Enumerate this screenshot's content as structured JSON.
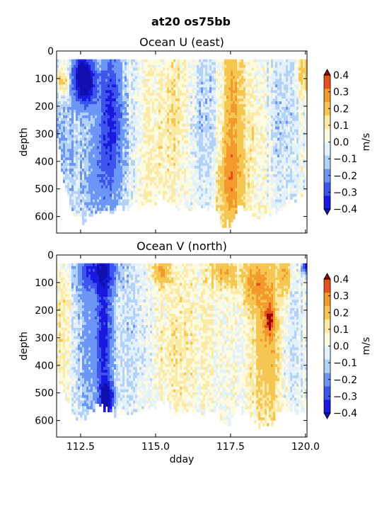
{
  "suptitle": "at20 os75bb",
  "colors": {
    "levels": [
      "#1a1adf",
      "#3d55ec",
      "#6b96f5",
      "#b4d2f7",
      "#e2f1fb",
      "#fdfbdf",
      "#fbeaa5",
      "#f6c653",
      "#f39a2d",
      "#e6501c"
    ],
    "under": "#1010b0",
    "over": "#a00000",
    "missing": "#ffffff"
  },
  "chart_data": [
    {
      "type": "heatmap",
      "title": "Ocean U (east)",
      "xlabel": "",
      "ylabel": "depth",
      "xlim": [
        111.7,
        120.05
      ],
      "ylim": [
        660,
        0
      ],
      "xticks": [
        112.5,
        115.0,
        117.5,
        120.0
      ],
      "xticklabels": [],
      "yticks": [
        0,
        100,
        200,
        300,
        400,
        500,
        600
      ],
      "yticklabels": [
        "0",
        "100",
        "200",
        "300",
        "400",
        "500",
        "600"
      ],
      "colorbar": {
        "label": "m/s",
        "ticks": [
          0.4,
          0.3,
          0.2,
          0.1,
          0.0,
          -0.1,
          -0.2,
          -0.3,
          -0.4
        ],
        "ticklabels": [
          "0.4",
          "0.3",
          "0.2",
          "0.1",
          "0.0",
          "−0.1",
          "−0.2",
          "−0.3",
          "−0.4"
        ],
        "levels": [
          -0.4,
          -0.3,
          -0.2,
          -0.1,
          -0.05,
          0.0,
          0.05,
          0.1,
          0.2,
          0.3,
          0.4
        ]
      },
      "data_top_depth": 30,
      "features": [
        {
          "x": 112.55,
          "depth": 90,
          "sx": 0.2,
          "sd": 60,
          "value": -0.45
        },
        {
          "x": 112.8,
          "depth": 120,
          "sx": 0.25,
          "sd": 60,
          "value": -0.25
        },
        {
          "x": 113.5,
          "depth": 200,
          "sx": 0.25,
          "sd": 170,
          "value": -0.28
        },
        {
          "x": 113.2,
          "depth": 450,
          "sx": 0.4,
          "sd": 150,
          "value": -0.15
        },
        {
          "x": 111.9,
          "depth": 110,
          "sx": 0.15,
          "sd": 40,
          "value": 0.18
        },
        {
          "x": 112.0,
          "depth": 300,
          "sx": 0.4,
          "sd": 250,
          "value": -0.1
        },
        {
          "x": 114.0,
          "depth": 300,
          "sx": 0.5,
          "sd": 200,
          "value": -0.06
        },
        {
          "x": 114.9,
          "depth": 350,
          "sx": 0.6,
          "sd": 250,
          "value": 0.06
        },
        {
          "x": 115.8,
          "depth": 200,
          "sx": 0.3,
          "sd": 200,
          "value": 0.08
        },
        {
          "x": 116.5,
          "depth": 250,
          "sx": 0.5,
          "sd": 200,
          "value": -0.07
        },
        {
          "x": 117.55,
          "depth": 200,
          "sx": 0.22,
          "sd": 200,
          "value": 0.22
        },
        {
          "x": 117.5,
          "depth": 500,
          "sx": 0.3,
          "sd": 120,
          "value": 0.2
        },
        {
          "x": 118.3,
          "depth": 300,
          "sx": 0.4,
          "sd": 200,
          "value": 0.05
        },
        {
          "x": 119.2,
          "depth": 250,
          "sx": 0.4,
          "sd": 200,
          "value": -0.07
        },
        {
          "x": 119.95,
          "depth": 80,
          "sx": 0.15,
          "sd": 60,
          "value": 0.15
        }
      ],
      "bottom_profile": {
        "x": [
          111.7,
          112.0,
          112.3,
          112.6,
          113.0,
          113.3,
          113.6,
          114.0,
          114.3,
          114.6,
          115.0,
          115.3,
          115.6,
          116.0,
          116.3,
          116.6,
          117.0,
          117.2,
          117.4,
          117.6,
          117.8,
          118.1,
          118.5,
          118.9,
          119.3,
          119.6,
          120.0
        ],
        "depth": [
          280,
          520,
          600,
          610,
          580,
          560,
          570,
          560,
          560,
          570,
          540,
          520,
          560,
          560,
          570,
          580,
          560,
          620,
          630,
          620,
          560,
          580,
          600,
          580,
          560,
          540,
          500
        ]
      }
    },
    {
      "type": "heatmap",
      "title": "Ocean V (north)",
      "xlabel": "dday",
      "ylabel": "depth",
      "xlim": [
        111.7,
        120.05
      ],
      "ylim": [
        660,
        0
      ],
      "xticks": [
        112.5,
        115.0,
        117.5,
        120.0
      ],
      "xticklabels": [
        "112.5",
        "115.0",
        "117.5",
        "120.0"
      ],
      "yticks": [
        0,
        100,
        200,
        300,
        400,
        500,
        600
      ],
      "yticklabels": [
        "0",
        "100",
        "200",
        "300",
        "400",
        "500",
        "600"
      ],
      "colorbar": {
        "label": "m/s",
        "ticks": [
          0.4,
          0.3,
          0.2,
          0.1,
          0.0,
          -0.1,
          -0.2,
          -0.3,
          -0.4
        ],
        "ticklabels": [
          "0.4",
          "0.3",
          "0.2",
          "0.1",
          "0.0",
          "−0.1",
          "−0.2",
          "−0.3",
          "−0.4"
        ],
        "levels": [
          -0.4,
          -0.3,
          -0.2,
          -0.1,
          -0.05,
          0.0,
          0.05,
          0.1,
          0.2,
          0.3,
          0.4
        ]
      },
      "data_top_depth": 30,
      "features": [
        {
          "x": 113.3,
          "depth": 300,
          "sx": 0.2,
          "sd": 250,
          "value": -0.28
        },
        {
          "x": 113.1,
          "depth": 60,
          "sx": 0.5,
          "sd": 50,
          "value": -0.25
        },
        {
          "x": 113.4,
          "depth": 520,
          "sx": 0.15,
          "sd": 40,
          "value": -0.35
        },
        {
          "x": 112.8,
          "depth": 300,
          "sx": 0.35,
          "sd": 250,
          "value": -0.12
        },
        {
          "x": 111.9,
          "depth": 250,
          "sx": 0.2,
          "sd": 200,
          "value": 0.07
        },
        {
          "x": 114.2,
          "depth": 300,
          "sx": 0.4,
          "sd": 250,
          "value": -0.06
        },
        {
          "x": 115.2,
          "depth": 60,
          "sx": 0.2,
          "sd": 40,
          "value": 0.2
        },
        {
          "x": 115.4,
          "depth": 350,
          "sx": 0.4,
          "sd": 200,
          "value": 0.06
        },
        {
          "x": 116.5,
          "depth": 250,
          "sx": 0.6,
          "sd": 250,
          "value": 0.04
        },
        {
          "x": 117.3,
          "depth": 60,
          "sx": 0.3,
          "sd": 40,
          "value": 0.18
        },
        {
          "x": 118.3,
          "depth": 100,
          "sx": 0.3,
          "sd": 60,
          "value": 0.18
        },
        {
          "x": 118.75,
          "depth": 300,
          "sx": 0.35,
          "sd": 250,
          "value": 0.18
        },
        {
          "x": 118.8,
          "depth": 230,
          "sx": 0.1,
          "sd": 40,
          "value": 0.3
        },
        {
          "x": 119.3,
          "depth": 70,
          "sx": 0.15,
          "sd": 50,
          "value": 0.2
        },
        {
          "x": 119.5,
          "depth": 300,
          "sx": 0.3,
          "sd": 200,
          "value": -0.05
        },
        {
          "x": 120.0,
          "depth": 40,
          "sx": 0.08,
          "sd": 20,
          "value": -0.35
        }
      ],
      "bottom_profile": {
        "x": [
          111.7,
          112.0,
          112.3,
          112.6,
          113.0,
          113.3,
          113.6,
          114.0,
          114.3,
          114.6,
          115.0,
          115.3,
          115.6,
          116.0,
          116.3,
          116.6,
          117.0,
          117.2,
          117.4,
          117.6,
          117.8,
          118.1,
          118.5,
          118.9,
          119.3,
          119.6,
          120.0
        ],
        "depth": [
          420,
          520,
          580,
          590,
          560,
          560,
          570,
          560,
          560,
          570,
          540,
          520,
          560,
          560,
          570,
          580,
          560,
          600,
          610,
          600,
          560,
          580,
          620,
          600,
          560,
          560,
          560
        ]
      }
    }
  ]
}
